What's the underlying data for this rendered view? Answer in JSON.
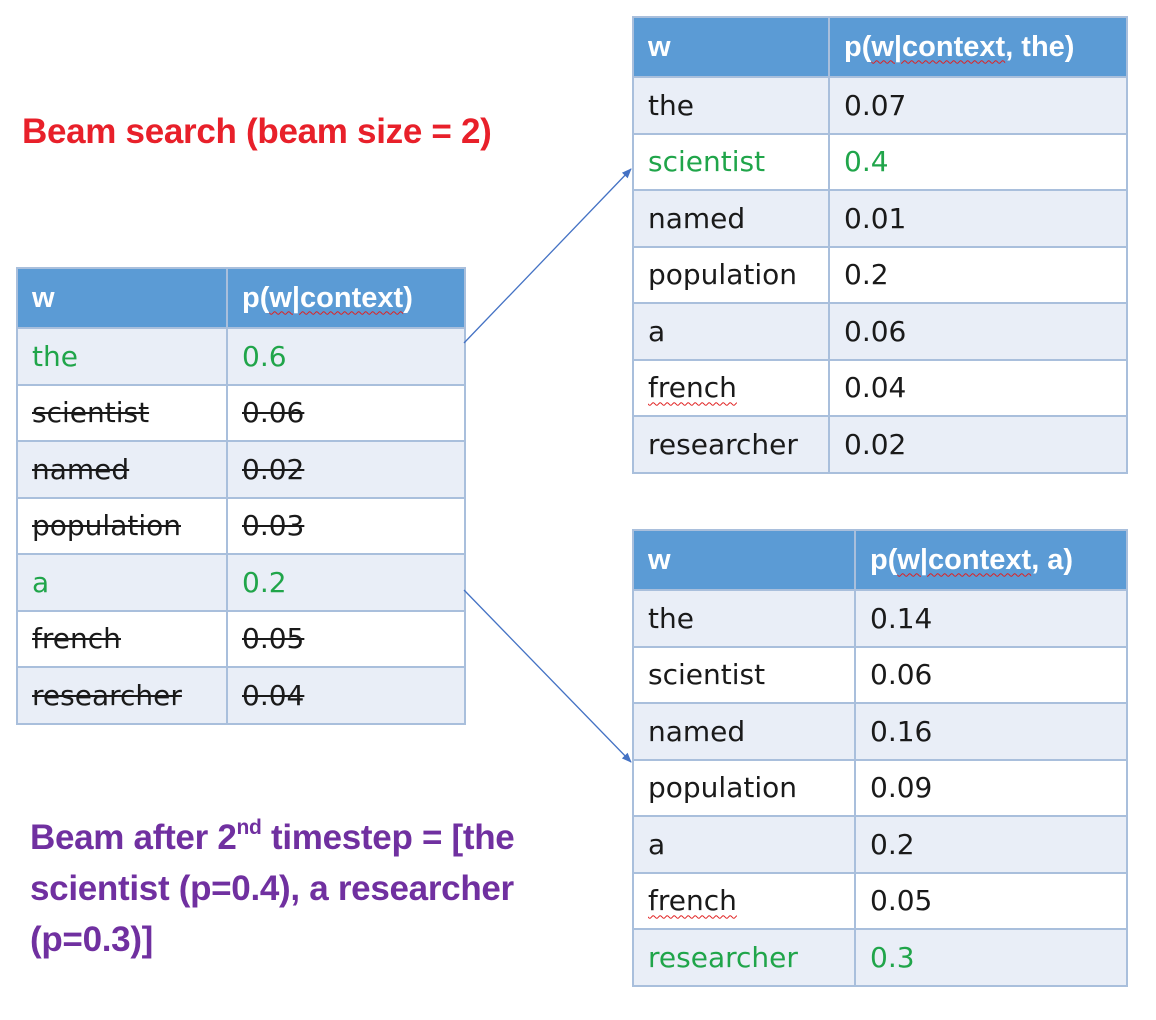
{
  "title": "Beam search (beam size = 2)",
  "note": {
    "prefix": "Beam after 2",
    "sup": "nd",
    "suffix": " timestep = [the scientist (p=0.4), a researcher (p=0.3)]"
  },
  "colors": {
    "header_bg": "#5b9bd5",
    "row_alt_bg": "#e9eef7",
    "selected": "#20a54a",
    "title": "#e8202a",
    "note": "#7030a0",
    "arrow": "#4472c4"
  },
  "tables": {
    "first": {
      "col1": "w",
      "col2": "p(w|context)",
      "rows": [
        {
          "w": "the",
          "p": "0.6",
          "state": "selected"
        },
        {
          "w": "scientist",
          "p": "0.06",
          "state": "pruned"
        },
        {
          "w": "named",
          "p": "0.02",
          "state": "pruned"
        },
        {
          "w": "population",
          "p": "0.03",
          "state": "pruned"
        },
        {
          "w": "a",
          "p": "0.2",
          "state": "selected"
        },
        {
          "w": "french",
          "p": "0.05",
          "state": "pruned"
        },
        {
          "w": "researcher",
          "p": "0.04",
          "state": "pruned"
        }
      ]
    },
    "the": {
      "col1": "w",
      "col2": "p(w|context, the)",
      "rows": [
        {
          "w": "the",
          "p": "0.07",
          "state": "normal"
        },
        {
          "w": "scientist",
          "p": "0.4",
          "state": "selected"
        },
        {
          "w": "named",
          "p": "0.01",
          "state": "normal"
        },
        {
          "w": "population",
          "p": "0.2",
          "state": "normal"
        },
        {
          "w": "a",
          "p": "0.06",
          "state": "normal"
        },
        {
          "w": "french",
          "p": "0.04",
          "state": "normal"
        },
        {
          "w": "researcher",
          "p": "0.02",
          "state": "normal"
        }
      ]
    },
    "a": {
      "col1": "w",
      "col2": "p(w|context, a)",
      "rows": [
        {
          "w": "the",
          "p": "0.14",
          "state": "normal"
        },
        {
          "w": "scientist",
          "p": "0.06",
          "state": "normal"
        },
        {
          "w": "named",
          "p": "0.16",
          "state": "normal"
        },
        {
          "w": "population",
          "p": "0.09",
          "state": "normal"
        },
        {
          "w": "a",
          "p": "0.2",
          "state": "normal"
        },
        {
          "w": "french",
          "p": "0.05",
          "state": "normal"
        },
        {
          "w": "researcher",
          "p": "0.3",
          "state": "selected"
        }
      ]
    }
  }
}
